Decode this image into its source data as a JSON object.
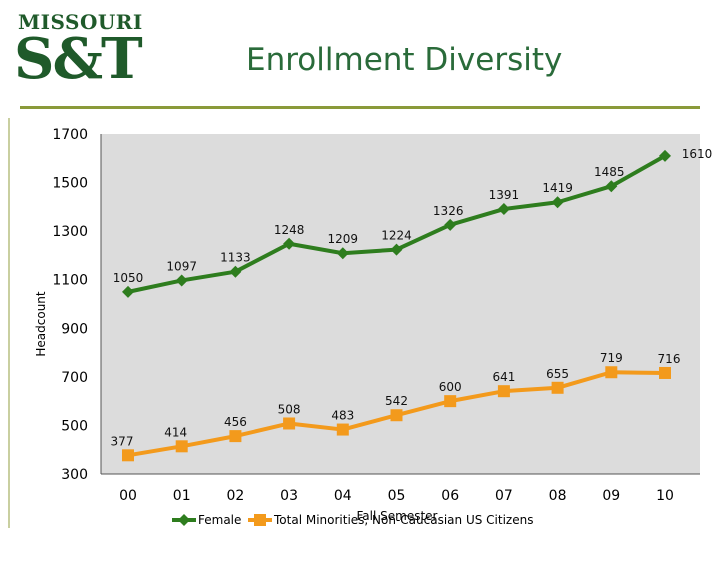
{
  "logo": {
    "line1": "MISSOURI",
    "line2": "S&T"
  },
  "slide_title": "Enrollment Diversity",
  "colors": {
    "female": "#2e7d1e",
    "minorities": "#f39a1c",
    "plot_bg": "#dcdcdc",
    "accent_rule": "#8a9a3a",
    "logo": "#1f5a2a"
  },
  "chart_data": {
    "type": "line",
    "title": "",
    "xlabel": "Fall Semester",
    "ylabel": "Headcount",
    "categories": [
      "00",
      "01",
      "02",
      "03",
      "04",
      "05",
      "06",
      "07",
      "08",
      "09",
      "10"
    ],
    "ylim": [
      300,
      1700
    ],
    "yticks": [
      300,
      500,
      700,
      900,
      1100,
      1300,
      1500,
      1700
    ],
    "grid": false,
    "legend_position": "bottom",
    "series": [
      {
        "name": "Female",
        "marker": "diamond",
        "values": [
          1050,
          1097,
          1133,
          1248,
          1209,
          1224,
          1326,
          1391,
          1419,
          1485,
          1610
        ]
      },
      {
        "name": "Total Minorities, Non-Caucasian US Citizens",
        "marker": "square",
        "values": [
          377,
          414,
          456,
          508,
          483,
          542,
          600,
          641,
          655,
          719,
          716
        ]
      }
    ]
  }
}
